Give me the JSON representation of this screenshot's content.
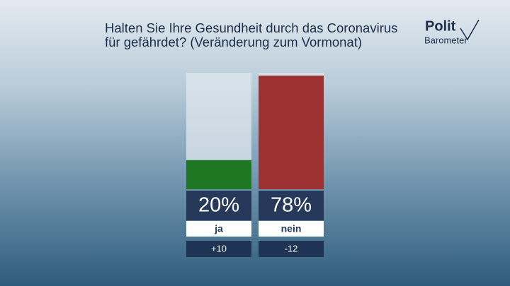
{
  "chart_data": {
    "type": "bar",
    "title": "Halten Sie Ihre Gesundheit durch das Coronavirus für gefährdet? (Veränderung zum Vormonat)",
    "logo": {
      "line1": "Polit",
      "line2": "Barometer"
    },
    "categories": [
      "ja",
      "nein"
    ],
    "values": [
      20,
      78
    ],
    "value_labels": [
      "20%",
      "78%"
    ],
    "changes": [
      10,
      -12
    ],
    "change_labels": [
      "+10",
      "-12"
    ],
    "colors": [
      "#1f7623",
      "#9b3131"
    ],
    "ylim": [
      0,
      80
    ]
  }
}
